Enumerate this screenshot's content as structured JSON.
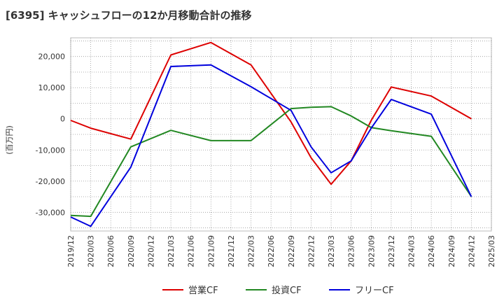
{
  "chart_data": {
    "type": "line",
    "title": "[6395]  キャッシュフローの12か月移動合計の推移",
    "ylabel": "(百万円)",
    "xlabel": "",
    "ylim": [
      -36000,
      26000
    ],
    "yticks": [
      20000,
      10000,
      0,
      -10000,
      -20000,
      -30000
    ],
    "ytick_labels": [
      "20,000",
      "10,000",
      "0",
      "-10,000",
      "-20,000",
      "-30,000"
    ],
    "x_tick_labels": [
      "2019/12",
      "2020/03",
      "2020/06",
      "2020/09",
      "2020/12",
      "2021/03",
      "2021/06",
      "2021/09",
      "2021/12",
      "2022/03",
      "2022/06",
      "2022/09",
      "2022/12",
      "2023/03",
      "2023/06",
      "2023/09",
      "2023/12",
      "2024/03",
      "2024/06",
      "2024/09",
      "2024/12",
      "2025/03"
    ],
    "grid": true,
    "legend_position": "bottom",
    "series": [
      {
        "name": "営業CF",
        "color": "#dd0000",
        "points": [
          [
            0,
            -500
          ],
          [
            1,
            -3000
          ],
          [
            3,
            -6500
          ],
          [
            5,
            20500
          ],
          [
            7,
            24500
          ],
          [
            9,
            17300
          ],
          [
            11,
            -1000
          ],
          [
            12,
            -12500
          ],
          [
            13,
            -21000
          ],
          [
            14,
            -13500
          ],
          [
            15,
            -500
          ],
          [
            16,
            10200
          ],
          [
            18,
            7300
          ],
          [
            20,
            0
          ]
        ]
      },
      {
        "name": "投資CF",
        "color": "#228822",
        "points": [
          [
            0,
            -31000
          ],
          [
            1,
            -31300
          ],
          [
            3,
            -9000
          ],
          [
            5,
            -3700
          ],
          [
            7,
            -7000
          ],
          [
            9,
            -7000
          ],
          [
            11,
            3300
          ],
          [
            12,
            3700
          ],
          [
            13,
            3900
          ],
          [
            14,
            900
          ],
          [
            15,
            -2800
          ],
          [
            16,
            -3800
          ],
          [
            18,
            -5600
          ],
          [
            20,
            -25000
          ]
        ]
      },
      {
        "name": "フリーCF",
        "color": "#0000dd",
        "points": [
          [
            0,
            -31500
          ],
          [
            1,
            -34500
          ],
          [
            3,
            -15500
          ],
          [
            5,
            16800
          ],
          [
            7,
            17300
          ],
          [
            9,
            10300
          ],
          [
            11,
            2700
          ],
          [
            12,
            -9000
          ],
          [
            13,
            -17300
          ],
          [
            14,
            -13500
          ],
          [
            15,
            -3000
          ],
          [
            16,
            6200
          ],
          [
            18,
            1500
          ],
          [
            20,
            -25000
          ]
        ]
      }
    ]
  }
}
